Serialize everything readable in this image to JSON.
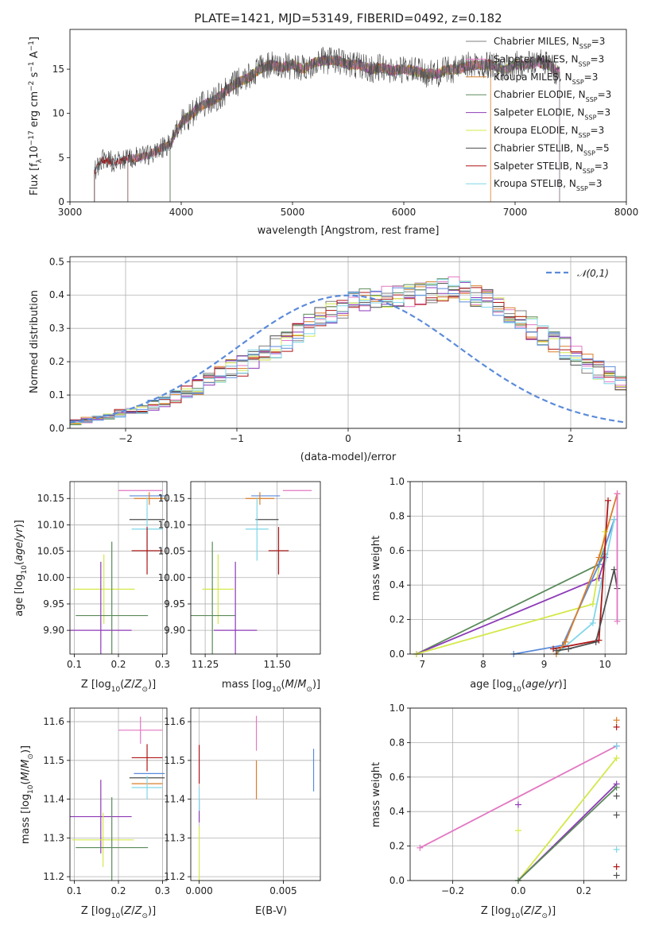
{
  "colors": {
    "Chabrier MILES": "#7f7f7f",
    "Salpeter MILES": "#e377c2",
    "Kroupa MILES": "#d97e2a",
    "Chabrier ELODIE": "#5a8a5a",
    "Salpeter ELODIE": "#8e3ab8",
    "Kroupa ELODIE": "#d4e84a",
    "Chabrier STELIB": "#4d4d4d",
    "Salpeter STELIB": "#b01515",
    "Kroupa STELIB": "#7fd6e8",
    "Extra": "#5b8bd9"
  },
  "chart_data": [
    {
      "type": "line",
      "title": "PLATE=1421, MJD=53149, FIBERID=0492, z=0.182",
      "xlabel": "wavelength [Angstrom, rest frame]",
      "ylabel": "Flux [f_λ 10^-17 erg cm^-2 s^-1 A^-1]",
      "xlim": [
        3000,
        8000
      ],
      "ylim": [
        0,
        19.5
      ],
      "xticks": [
        "3000",
        "4000",
        "5000",
        "6000",
        "7000",
        "8000"
      ],
      "yticks": [
        "0",
        "5",
        "10",
        "15"
      ],
      "legend_position": "upper-right",
      "legend": [
        {
          "label": "Chabrier MILES",
          "nssp": "3"
        },
        {
          "label": "Salpeter MILES",
          "nssp": "3"
        },
        {
          "label": "Kroupa MILES",
          "nssp": "3"
        },
        {
          "label": "Chabrier ELODIE",
          "nssp": "3"
        },
        {
          "label": "Salpeter ELODIE",
          "nssp": "3"
        },
        {
          "label": "Kroupa ELODIE",
          "nssp": "3"
        },
        {
          "label": "Chabrier STELIB",
          "nssp": "5"
        },
        {
          "label": "Salpeter STELIB",
          "nssp": "3"
        },
        {
          "label": "Kroupa STELIB",
          "nssp": "3"
        }
      ],
      "spectrum_shape": {
        "x": [
          3220,
          3300,
          3400,
          3500,
          3600,
          3700,
          3800,
          3900,
          4000,
          4100,
          4200,
          4300,
          4400,
          4500,
          4600,
          4700,
          4800,
          4900,
          5000,
          5100,
          5200,
          5300,
          5400,
          5500,
          5600,
          5700,
          5800,
          5900,
          6000,
          6100,
          6200,
          6300,
          6400,
          6500,
          6600,
          6700,
          6800,
          6900,
          7000,
          7100,
          7200,
          7300,
          7400
        ],
        "y": [
          3.5,
          4.8,
          4.5,
          4.8,
          5.0,
          5.2,
          6.0,
          6.5,
          9.0,
          10.0,
          11.0,
          11.5,
          12.5,
          13.5,
          14.0,
          15.0,
          15.5,
          15.2,
          15.5,
          15.0,
          15.8,
          16.0,
          16.0,
          15.5,
          15.5,
          15.0,
          15.2,
          14.8,
          15.0,
          14.8,
          14.5,
          14.5,
          15.0,
          15.0,
          15.5,
          15.5,
          15.5,
          14.8,
          15.5,
          15.5,
          15.8,
          15.5,
          14.5
        ]
      },
      "model_starts": [
        3220,
        3520,
        3900,
        6780,
        7400
      ]
    },
    {
      "type": "area",
      "xlabel": "(data-model)/error",
      "ylabel": "Normed distribution",
      "xlim": [
        -2.5,
        2.5
      ],
      "ylim": [
        0,
        0.515
      ],
      "xticks": [
        "−2",
        "−1",
        "0",
        "1",
        "2"
      ],
      "yticks": [
        "0.0",
        "0.1",
        "0.2",
        "0.3",
        "0.4",
        "0.5"
      ],
      "legend": [
        {
          "label": "𝒩(0,1)"
        }
      ],
      "bin_width": 0.1,
      "bin_start": -2.5,
      "histogram_mean": [
        0.02,
        0.025,
        0.03,
        0.035,
        0.045,
        0.055,
        0.06,
        0.07,
        0.08,
        0.095,
        0.11,
        0.125,
        0.14,
        0.16,
        0.175,
        0.19,
        0.205,
        0.225,
        0.245,
        0.265,
        0.29,
        0.31,
        0.33,
        0.35,
        0.365,
        0.375,
        0.385,
        0.39,
        0.395,
        0.4,
        0.4,
        0.405,
        0.41,
        0.415,
        0.42,
        0.41,
        0.4,
        0.385,
        0.36,
        0.34,
        0.32,
        0.3,
        0.28,
        0.26,
        0.24,
        0.22,
        0.2,
        0.18,
        0.16,
        0.14,
        0.12,
        0.105,
        0.09,
        0.075,
        0.065,
        0.055,
        0.045,
        0.04,
        0.035,
        0.03,
        0.025,
        0.02
      ]
    },
    {
      "type": "scatter",
      "xlabel": "Z [log10(Z/Z⊙)]",
      "ylabel": "age [log10(age/yr)]",
      "xlim": [
        0.09,
        0.31
      ],
      "ylim": [
        9.855,
        10.182
      ],
      "xticks": [
        "0.1",
        "0.2",
        "0.3"
      ],
      "yticks": [
        "9.90",
        "9.95",
        "10.00",
        "10.05",
        "10.10",
        "10.15"
      ],
      "points": [
        {
          "s": "Salpeter MILES",
          "x": 0.25,
          "y": 10.165,
          "xe": 0.05,
          "ye": 0.0
        },
        {
          "s": "Extra",
          "x": 0.265,
          "y": 10.155,
          "xe": 0.04,
          "ye": 0.0
        },
        {
          "s": "Kroupa MILES",
          "x": 0.27,
          "y": 10.15,
          "xe": 0.035,
          "ye": 0.012
        },
        {
          "s": "Chabrier STELIB",
          "x": 0.265,
          "y": 10.11,
          "xe": 0.04,
          "ye": 0.0
        },
        {
          "s": "Kroupa STELIB",
          "x": 0.265,
          "y": 10.092,
          "xe": 0.035,
          "ye": 0.06
        },
        {
          "s": "Salpeter STELIB",
          "x": 0.265,
          "y": 10.051,
          "xe": 0.035,
          "ye": 0.045
        },
        {
          "s": "Kroupa ELODIE",
          "x": 0.167,
          "y": 9.978,
          "xe": 0.07,
          "ye": 0.066
        },
        {
          "s": "Chabrier ELODIE",
          "x": 0.185,
          "y": 9.928,
          "xe": 0.082,
          "ye": 0.14
        },
        {
          "s": "Salpeter ELODIE",
          "x": 0.16,
          "y": 9.9,
          "xe": 0.07,
          "ye": 0.13
        }
      ]
    },
    {
      "type": "scatter",
      "xlabel": "mass [log10(M/M⊙)]",
      "ylabel": "",
      "xlim": [
        11.2,
        11.65
      ],
      "ylim": [
        9.855,
        10.182
      ],
      "xticks": [
        "11.25",
        "11.50"
      ],
      "yticks": [
        "9.90",
        "9.95",
        "10.00",
        "10.05",
        "10.10",
        "10.15"
      ],
      "points": [
        {
          "s": "Salpeter MILES",
          "x": 11.57,
          "y": 10.165,
          "xe": 0.05,
          "ye": 0.0
        },
        {
          "s": "Extra",
          "x": 11.46,
          "y": 10.155,
          "xe": 0.05,
          "ye": 0.0
        },
        {
          "s": "Kroupa MILES",
          "x": 11.44,
          "y": 10.15,
          "xe": 0.05,
          "ye": 0.012
        },
        {
          "s": "Chabrier STELIB",
          "x": 11.465,
          "y": 10.11,
          "xe": 0.04,
          "ye": 0.0
        },
        {
          "s": "Kroupa STELIB",
          "x": 11.43,
          "y": 10.092,
          "xe": 0.04,
          "ye": 0.06
        },
        {
          "s": "Salpeter STELIB",
          "x": 11.505,
          "y": 10.051,
          "xe": 0.035,
          "ye": 0.045
        },
        {
          "s": "Kroupa ELODIE",
          "x": 11.295,
          "y": 9.978,
          "xe": 0.055,
          "ye": 0.066
        },
        {
          "s": "Chabrier ELODIE",
          "x": 11.275,
          "y": 9.928,
          "xe": 0.08,
          "ye": 0.14
        },
        {
          "s": "Salpeter ELODIE",
          "x": 11.355,
          "y": 9.9,
          "xe": 0.075,
          "ye": 0.13
        }
      ]
    },
    {
      "type": "line",
      "xlabel": "age [log10(age/yr)]",
      "ylabel": "mass weight",
      "xlim": [
        6.8,
        10.35
      ],
      "ylim": [
        0,
        1
      ],
      "xticks": [
        "7",
        "8",
        "9",
        "10"
      ],
      "yticks": [
        "0.0",
        "0.2",
        "0.4",
        "0.6",
        "0.8",
        "1.0"
      ],
      "series": [
        {
          "s": "Chabrier ELODIE",
          "x": [
            6.9,
            9.9,
            10.0
          ],
          "y": [
            0.0,
            0.52,
            0.58
          ]
        },
        {
          "s": "Salpeter ELODIE",
          "x": [
            6.9,
            9.9,
            10.0
          ],
          "y": [
            0.0,
            0.44,
            0.56
          ]
        },
        {
          "s": "Kroupa ELODIE",
          "x": [
            6.9,
            9.8,
            10.0
          ],
          "y": [
            0.0,
            0.29,
            0.71
          ]
        },
        {
          "s": "Extra",
          "x": [
            8.5,
            9.3,
            9.9,
            10.15
          ],
          "y": [
            0.0,
            0.05,
            0.52,
            0.78
          ]
        },
        {
          "s": "Kroupa STELIB",
          "x": [
            9.2,
            9.8,
            10.15
          ],
          "y": [
            0.0,
            0.18,
            0.78
          ]
        },
        {
          "s": "Salpeter STELIB",
          "x": [
            9.15,
            9.9,
            10.05
          ],
          "y": [
            0.03,
            0.08,
            0.89
          ]
        },
        {
          "s": "Kroupa MILES",
          "x": [
            9.2,
            9.35,
            9.9,
            10.2
          ],
          "y": [
            0.0,
            0.07,
            0.56,
            0.93
          ]
        },
        {
          "s": "Chabrier STELIB",
          "x": [
            9.2,
            9.4,
            9.85,
            10.15,
            10.2
          ],
          "y": [
            0.02,
            0.03,
            0.07,
            0.49,
            0.38
          ]
        },
        {
          "s": "Salpeter MILES",
          "x": [
            10.2,
            10.2
          ],
          "y": [
            0.19,
            0.93
          ]
        }
      ]
    },
    {
      "type": "scatter",
      "xlabel": "Z [log10(Z/Z⊙)]",
      "ylabel": "mass [log10(M/M⊙)]",
      "xlim": [
        0.09,
        0.31
      ],
      "ylim": [
        11.19,
        11.635
      ],
      "xticks": [
        "0.1",
        "0.2",
        "0.3"
      ],
      "yticks": [
        "11.2",
        "11.3",
        "11.4",
        "11.5",
        "11.6"
      ],
      "points": [
        {
          "s": "Salpeter MILES",
          "x": 0.25,
          "y": 11.578,
          "xe": 0.05,
          "ye": 0.035
        },
        {
          "s": "Salpeter STELIB",
          "x": 0.265,
          "y": 11.507,
          "xe": 0.035,
          "ye": 0.035
        },
        {
          "s": "Extra",
          "x": 0.27,
          "y": 11.466,
          "xe": 0.035,
          "ye": 0.0
        },
        {
          "s": "Chabrier STELIB",
          "x": 0.265,
          "y": 11.455,
          "xe": 0.04,
          "ye": 0.0
        },
        {
          "s": "Kroupa MILES",
          "x": 0.265,
          "y": 11.44,
          "xe": 0.035,
          "ye": 0.0
        },
        {
          "s": "Kroupa STELIB",
          "x": 0.265,
          "y": 11.43,
          "xe": 0.035,
          "ye": 0.03
        },
        {
          "s": "Salpeter ELODIE",
          "x": 0.16,
          "y": 11.355,
          "xe": 0.07,
          "ye": 0.095
        },
        {
          "s": "Kroupa ELODIE",
          "x": 0.165,
          "y": 11.295,
          "xe": 0.07,
          "ye": 0.07
        },
        {
          "s": "Chabrier ELODIE",
          "x": 0.185,
          "y": 11.275,
          "xe": 0.082,
          "ye": 0.13
        }
      ]
    },
    {
      "type": "scatter",
      "xlabel": "E(B-V)",
      "ylabel": "",
      "xlim": [
        -0.0005,
        0.0072
      ],
      "ylim": [
        11.19,
        11.635
      ],
      "xticks": [
        "0.000",
        "0.005"
      ],
      "yticks": [
        "11.2",
        "11.3",
        "11.4",
        "11.5",
        "11.6"
      ],
      "points": [
        {
          "s": "Salpeter MILES",
          "x": 0.0034,
          "y": 11.57,
          "xe": 0,
          "ye": 0.045
        },
        {
          "s": "Salpeter STELIB",
          "x": 0.0,
          "y": 11.49,
          "xe": 0,
          "ye": 0.05
        },
        {
          "s": "Extra",
          "x": 0.0068,
          "y": 11.475,
          "xe": 0,
          "ye": 0.055
        },
        {
          "s": "Kroupa MILES",
          "x": 0.0034,
          "y": 11.45,
          "xe": 0,
          "ye": 0.05
        },
        {
          "s": "Salpeter ELODIE",
          "x": 0.0,
          "y": 11.37,
          "xe": 0,
          "ye": 0.03
        },
        {
          "s": "Kroupa STELIB",
          "x": 0.0,
          "y": 11.4,
          "xe": 0,
          "ye": 0.03
        },
        {
          "s": "Kroupa ELODIE",
          "x": 0.0,
          "y": 11.26,
          "xe": 0,
          "ye": 0.07
        }
      ]
    },
    {
      "type": "line",
      "xlabel": "Z [log10(Z/Z⊙)]",
      "ylabel": "mass weight",
      "xlim": [
        -0.33,
        0.33
      ],
      "ylim": [
        0,
        1
      ],
      "xticks": [
        "−0.2",
        "0.0",
        "0.2"
      ],
      "yticks": [
        "0.0",
        "0.2",
        "0.4",
        "0.6",
        "0.8",
        "1.0"
      ],
      "series": [
        {
          "s": "Salpeter MILES",
          "x": [
            -0.3,
            0.3
          ],
          "y": [
            0.19,
            0.78
          ]
        },
        {
          "s": "Kroupa ELODIE",
          "x": [
            0.0,
            0.3
          ],
          "y": [
            0.0,
            0.71
          ]
        },
        {
          "s": "Salpeter ELODIE",
          "x": [
            0.0,
            0.3
          ],
          "y": [
            0.0,
            0.56
          ]
        },
        {
          "s": "Chabrier ELODIE",
          "x": [
            0.0,
            0.3
          ],
          "y": [
            0.0,
            0.54
          ]
        }
      ],
      "markers": [
        {
          "s": "Salpeter ELODIE",
          "x": 0.0,
          "y": 0.44
        },
        {
          "s": "Kroupa ELODIE",
          "x": 0.0,
          "y": 0.29
        },
        {
          "s": "Kroupa MILES",
          "x": 0.3,
          "y": 0.93
        },
        {
          "s": "Salpeter STELIB",
          "x": 0.3,
          "y": 0.89
        },
        {
          "s": "Extra",
          "x": 0.3,
          "y": 0.78
        },
        {
          "s": "Kroupa STELIB",
          "x": 0.3,
          "y": 0.78
        },
        {
          "s": "Chabrier STELIB",
          "x": 0.3,
          "y": 0.49
        },
        {
          "s": "Chabrier STELIB",
          "x": 0.3,
          "y": 0.38
        },
        {
          "s": "Kroupa STELIB",
          "x": 0.3,
          "y": 0.18
        },
        {
          "s": "Salpeter STELIB",
          "x": 0.3,
          "y": 0.08
        },
        {
          "s": "Chabrier STELIB",
          "x": 0.3,
          "y": 0.03
        }
      ]
    }
  ]
}
